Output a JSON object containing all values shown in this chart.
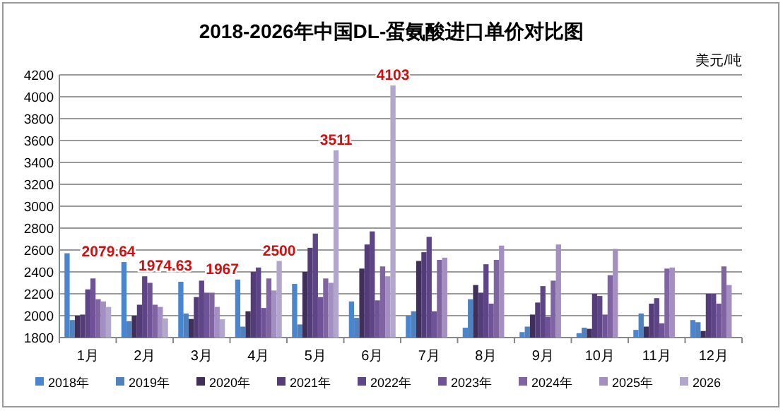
{
  "chart_data": {
    "type": "bar",
    "title": "2018-2026年中国DL-蛋氨酸进口单价对比图",
    "ylabel": "美元/吨",
    "categories": [
      "1月",
      "2月",
      "3月",
      "4月",
      "5月",
      "6月",
      "7月",
      "8月",
      "9月",
      "10月",
      "11月",
      "12月"
    ],
    "series": [
      {
        "name": "2018年",
        "color": "#4a86cf",
        "values": [
          2570,
          2490,
          2310,
          2330,
          2290,
          2130,
          2000,
          1890,
          1850,
          1840,
          1870,
          1960
        ]
      },
      {
        "name": "2019年",
        "color": "#4f81bd",
        "values": [
          1960,
          1950,
          2020,
          1900,
          1920,
          1980,
          2040,
          2150,
          1900,
          1890,
          2020,
          1940
        ]
      },
      {
        "name": "2020年",
        "color": "#3f2f5a",
        "values": [
          2000,
          2000,
          1970,
          2040,
          2400,
          2430,
          2500,
          2280,
          2010,
          1880,
          1900,
          1860
        ]
      },
      {
        "name": "2021年",
        "color": "#533c78",
        "values": [
          2010,
          2100,
          2170,
          2400,
          2620,
          2650,
          2580,
          2210,
          2120,
          2200,
          2110,
          2200
        ]
      },
      {
        "name": "2022年",
        "color": "#5e4588",
        "values": [
          2240,
          2360,
          2320,
          2440,
          2750,
          2770,
          2720,
          2470,
          2270,
          2180,
          2160,
          2200
        ]
      },
      {
        "name": "2023年",
        "color": "#6f5297",
        "values": [
          2340,
          2300,
          2210,
          2070,
          2170,
          2140,
          2040,
          2110,
          1990,
          2010,
          1930,
          2110
        ]
      },
      {
        "name": "2024年",
        "color": "#8064a2",
        "values": [
          2150,
          2100,
          2210,
          2340,
          2340,
          2450,
          2510,
          2510,
          2320,
          2370,
          2430,
          2450
        ]
      },
      {
        "name": "2025年",
        "color": "#a48fc2",
        "values": [
          2130,
          2080,
          2080,
          2230,
          2300,
          2360,
          2530,
          2640,
          2650,
          2610,
          2440,
          2280
        ]
      },
      {
        "name": "2026",
        "color": "#b3a6cc",
        "values": [
          2079.64,
          1974.63,
          1967,
          2500,
          3511,
          4103,
          null,
          null,
          null,
          null,
          null,
          null
        ],
        "value_labels": [
          "2079.64",
          "1974.63",
          "1967",
          "2500",
          "3511",
          "4103",
          null,
          null,
          null,
          null,
          null,
          null
        ]
      }
    ],
    "ylim": [
      1800,
      4200
    ],
    "yticks": [
      1800,
      2000,
      2200,
      2400,
      2600,
      2800,
      3000,
      3200,
      3400,
      3600,
      3800,
      4000,
      4200
    ],
    "grid": "y",
    "legend": "bottom"
  }
}
